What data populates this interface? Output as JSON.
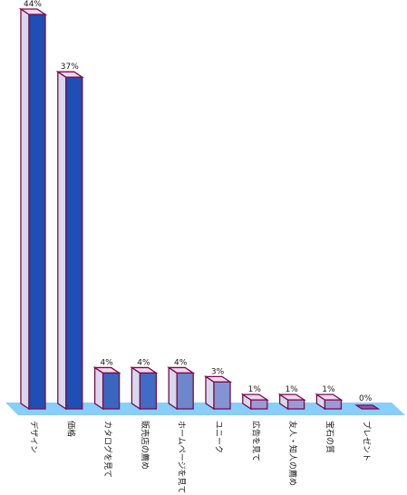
{
  "chart_data": {
    "type": "bar",
    "categories": [
      "デザイン",
      "価格",
      "カタログを見て",
      "販売店の薦め",
      "ホームページを見て",
      "ユニーク",
      "広告を見て",
      "友人・知人の薦め",
      "宝石の質",
      "プレゼント"
    ],
    "values": [
      44,
      37,
      4,
      4,
      4,
      3,
      1,
      1,
      1,
      0
    ],
    "value_labels": [
      "44%",
      "37%",
      "4%",
      "4%",
      "4%",
      "3%",
      "1%",
      "1%",
      "1%",
      "0%"
    ],
    "title": "",
    "xlabel": "",
    "ylabel": "",
    "ylim": [
      0,
      44
    ],
    "grid": false,
    "legend": "none",
    "style": "3d-bar",
    "colors": {
      "floor": "#87cefa",
      "bar_face": [
        "#1e4fb4",
        "#1e4fb4",
        "#3a66c0",
        "#3f6cc4",
        "#6e86cc",
        "#8494d2",
        "#9a9ad6",
        "#9a9ad6",
        "#9a9ad6",
        "#8a5aa8"
      ],
      "bar_side": "#d8d8ec",
      "bar_top": "#f0d8ee",
      "outline": "#7a0a4a"
    }
  }
}
